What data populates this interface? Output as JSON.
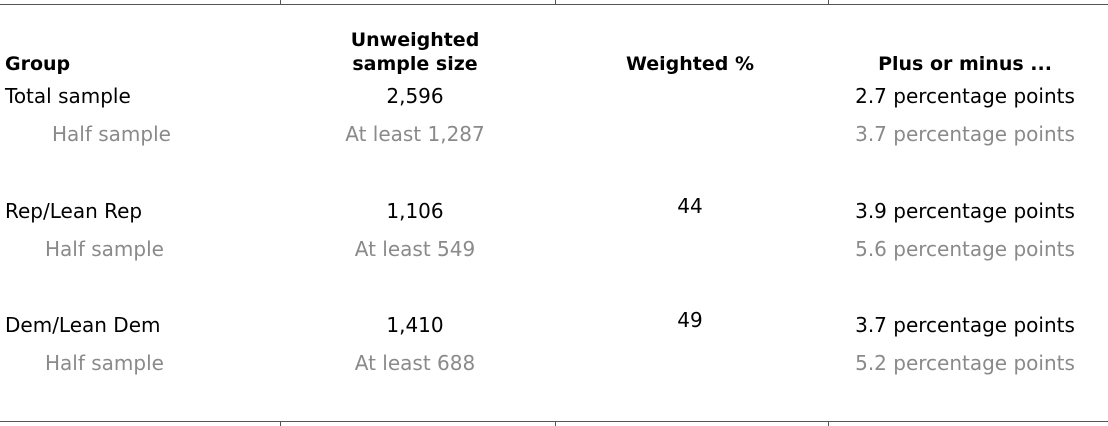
{
  "table": {
    "header": {
      "group": "Group",
      "sample_size": [
        "Unweighted",
        "sample size"
      ],
      "weighted": "Weighted %",
      "moe": "Plus or minus ..."
    },
    "groups": [
      {
        "label": "Total sample",
        "sample_size": "2,596",
        "moe": "2.7 percentage points",
        "half_sample": {
          "label": "Half sample",
          "sample_size": "At least 1,287",
          "moe": "3.7 percentage points"
        }
      },
      {
        "label": "Rep/Lean Rep",
        "sample_size": "1,106",
        "weighted": "44",
        "moe": "3.9 percentage points",
        "half_sample": {
          "label": "Half sample",
          "sample_size": "At least 549",
          "moe": "5.6 percentage points"
        }
      },
      {
        "label": "Dem/Lean Dem",
        "sample_size": "1,410",
        "weighted": "49",
        "moe": "3.7 percentage points",
        "half_sample": {
          "label": "Half sample",
          "sample_size": "At least 688",
          "moe": "5.2 percentage points"
        }
      }
    ]
  }
}
